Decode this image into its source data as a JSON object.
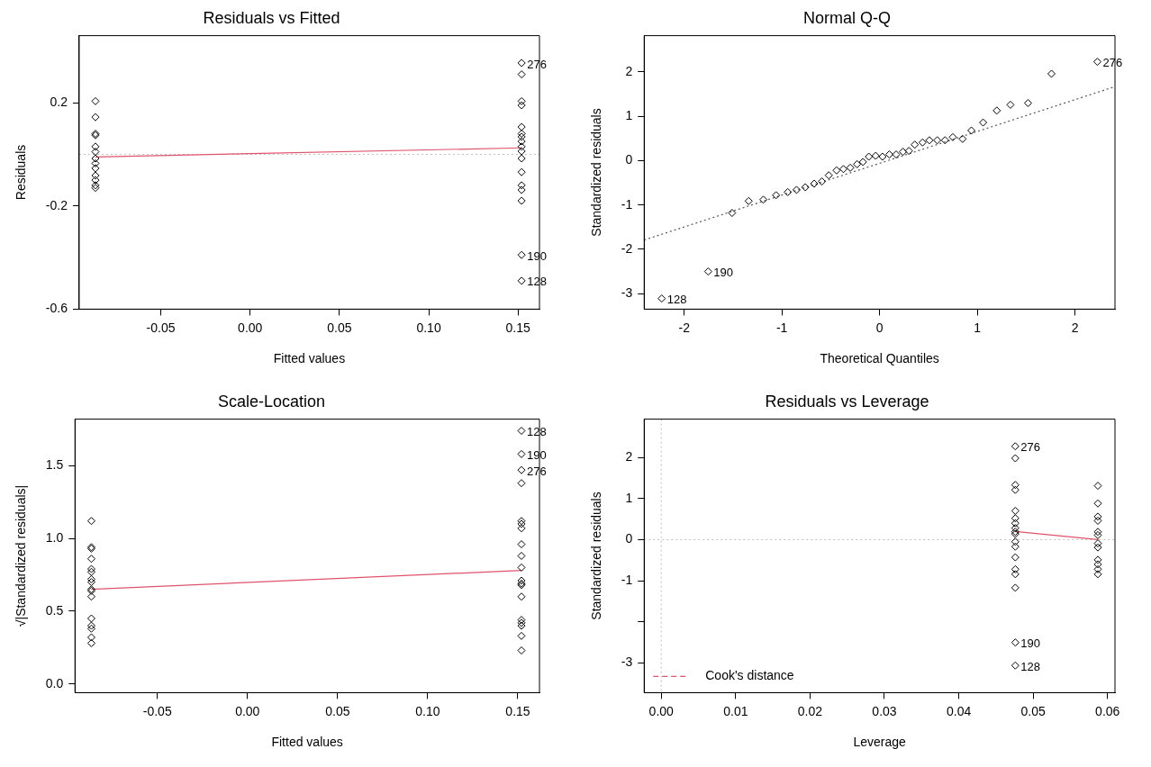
{
  "chart_data": [
    {
      "type": "scatter",
      "title": "Residuals vs Fitted",
      "xlabel": "Fitted values",
      "ylabel": "Residuals",
      "xlim": [
        -0.0957,
        0.162
      ],
      "xticks": [
        {
          "value": -0.05,
          "label": "-0.05"
        },
        {
          "value": 0,
          "label": "0.00"
        },
        {
          "value": 0.05,
          "label": "0.05"
        },
        {
          "value": 0.1,
          "label": "0.10"
        },
        {
          "value": 0.15,
          "label": "0.15"
        }
      ],
      "ylim": [
        -0.6,
        0.46
      ],
      "yticks": [
        {
          "value": -0.6,
          "label": "-0.6"
        },
        {
          "value": -0.2,
          "label": "-0.2"
        },
        {
          "value": 0.2,
          "label": "0.2"
        }
      ],
      "grid": false,
      "marker": "diamond",
      "series": [
        {
          "type": "scatter",
          "color": "#000000",
          "x": [
            -0.0866,
            -0.0866,
            -0.0866,
            -0.0866,
            -0.0866,
            -0.0866,
            -0.0866,
            -0.0866,
            -0.0866,
            -0.0866,
            -0.0866,
            -0.0866,
            -0.0866,
            0.152,
            0.152,
            0.152,
            0.152,
            0.152,
            0.152,
            0.152,
            0.152,
            0.152,
            0.152,
            0.152,
            0.152,
            0.152,
            0.152,
            0.152,
            0.152,
            0.152
          ],
          "values": [
            0.206,
            0.144,
            0.08,
            0.074,
            0.03,
            0.01,
            -0.016,
            -0.035,
            -0.054,
            -0.082,
            -0.1,
            -0.12,
            -0.13,
            0.354,
            0.31,
            0.206,
            0.19,
            0.106,
            0.08,
            0.068,
            0.05,
            0.03,
            0.012,
            -0.016,
            -0.069,
            -0.12,
            -0.138,
            -0.18,
            -0.39,
            -0.49
          ]
        },
        {
          "type": "line",
          "color": "#df536b",
          "marker": "none",
          "line_style": "solid",
          "x": [
            -0.0866,
            0.152
          ],
          "values": [
            -0.01,
            0.025
          ]
        }
      ],
      "ref_lines": [
        {
          "axis": "y",
          "value": 0,
          "color": "#bebebe",
          "line_style": "dotted"
        }
      ],
      "annotations": [
        {
          "text": "276",
          "x": 0.152,
          "y": 0.354
        },
        {
          "text": "190",
          "x": 0.152,
          "y": -0.39
        },
        {
          "text": "128",
          "x": 0.152,
          "y": -0.49
        }
      ]
    },
    {
      "type": "scatter",
      "title": "Normal Q-Q",
      "xlabel": "Theoretical Quantiles",
      "ylabel": "Standardized residuals",
      "xlim": [
        -2.41,
        2.41
      ],
      "xticks": [
        -2,
        -1,
        0,
        1,
        2
      ],
      "ylim": [
        -3.35,
        2.82
      ],
      "yticks": [
        -3,
        -2,
        -1,
        0,
        1,
        2
      ],
      "grid": false,
      "marker": "diamond",
      "series": [
        {
          "type": "scatter",
          "color": "#000000",
          "x": [
            -2.23,
            -1.755,
            -1.51,
            -1.34,
            -1.19,
            -1.06,
            -0.94,
            -0.85,
            -0.76,
            -0.67,
            -0.59,
            -0.52,
            -0.44,
            -0.37,
            -0.3,
            -0.23,
            -0.17,
            -0.11,
            -0.04,
            0.03,
            0.1,
            0.17,
            0.24,
            0.3,
            0.36,
            0.44,
            0.51,
            0.59,
            0.67,
            0.75,
            0.85,
            0.94,
            1.06,
            1.2,
            1.34,
            1.52,
            1.76,
            2.23
          ],
          "values": [
            -3.11,
            -2.5,
            -1.18,
            -0.91,
            -0.88,
            -0.78,
            -0.71,
            -0.66,
            -0.6,
            -0.52,
            -0.47,
            -0.33,
            -0.22,
            -0.19,
            -0.16,
            -0.08,
            -0.03,
            0.09,
            0.11,
            0.09,
            0.14,
            0.14,
            0.2,
            0.22,
            0.36,
            0.41,
            0.46,
            0.46,
            0.46,
            0.53,
            0.49,
            0.68,
            0.86,
            1.13,
            1.26,
            1.3,
            1.96,
            2.23
          ]
        },
        {
          "type": "line",
          "color": "#555555",
          "marker": "none",
          "line_style": "dotted",
          "x": [
            -2.41,
            2.41
          ],
          "values": [
            -1.79,
            1.67
          ]
        }
      ],
      "annotations": [
        {
          "text": "276",
          "x": 2.23,
          "y": 2.23
        },
        {
          "text": "190",
          "x": -1.755,
          "y": -2.5
        },
        {
          "text": "128",
          "x": -2.23,
          "y": -3.11
        }
      ]
    },
    {
      "type": "scatter",
      "title": "Scale-Location",
      "xlabel": "Fitted values",
      "ylabel": "√|Standardized residuals|",
      "xlim": [
        -0.0957,
        0.162
      ],
      "xticks": [
        {
          "value": -0.05,
          "label": "-0.05"
        },
        {
          "value": 0,
          "label": "0.00"
        },
        {
          "value": 0.05,
          "label": "0.05"
        },
        {
          "value": 0.1,
          "label": "0.10"
        },
        {
          "value": 0.15,
          "label": "0.15"
        }
      ],
      "ylim": [
        -0.06,
        1.82
      ],
      "yticks": [
        {
          "value": 0,
          "label": "0.0"
        },
        {
          "value": 0.5,
          "label": "0.5"
        },
        {
          "value": 1,
          "label": "1.0"
        },
        {
          "value": 1.5,
          "label": "1.5"
        }
      ],
      "grid": false,
      "marker": "diamond",
      "series": [
        {
          "type": "scatter",
          "color": "#000000",
          "x": [
            -0.0866,
            -0.0866,
            -0.0866,
            -0.0866,
            -0.0866,
            -0.0866,
            -0.0866,
            -0.0866,
            -0.0866,
            -0.0866,
            -0.0866,
            -0.0866,
            -0.0866,
            -0.0866,
            -0.0866,
            -0.0866,
            0.152,
            0.152,
            0.152,
            0.152,
            0.152,
            0.152,
            0.152,
            0.152,
            0.152,
            0.152,
            0.152,
            0.152,
            0.152,
            0.152,
            0.152,
            0.152,
            0.152,
            0.152,
            0.152
          ],
          "values": [
            1.12,
            0.94,
            0.93,
            0.86,
            0.79,
            0.77,
            0.72,
            0.7,
            0.65,
            0.64,
            0.6,
            0.45,
            0.4,
            0.38,
            0.32,
            0.28,
            1.74,
            1.58,
            1.47,
            1.38,
            1.12,
            1.1,
            1.07,
            0.96,
            0.88,
            0.8,
            0.71,
            0.69,
            0.68,
            0.6,
            0.44,
            0.42,
            0.4,
            0.33,
            0.23
          ]
        },
        {
          "type": "line",
          "color": "#df536b",
          "marker": "none",
          "line_style": "solid",
          "x": [
            -0.0866,
            0.152
          ],
          "values": [
            0.65,
            0.78
          ]
        }
      ],
      "annotations": [
        {
          "text": "128",
          "x": 0.152,
          "y": 1.74
        },
        {
          "text": "190",
          "x": 0.152,
          "y": 1.58
        },
        {
          "text": "276",
          "x": 0.152,
          "y": 1.47
        }
      ]
    },
    {
      "type": "scatter",
      "title": "Residuals vs Leverage",
      "xlabel": "Leverage",
      "ylabel": "Standardized residuals",
      "xlim": [
        -0.0023,
        0.061
      ],
      "xticks": [
        {
          "value": 0,
          "label": "0.00"
        },
        {
          "value": 0.01,
          "label": "0.01"
        },
        {
          "value": 0.02,
          "label": "0.02"
        },
        {
          "value": 0.03,
          "label": "0.03"
        },
        {
          "value": 0.04,
          "label": "0.04"
        },
        {
          "value": 0.05,
          "label": "0.05"
        },
        {
          "value": 0.06,
          "label": "0.06"
        }
      ],
      "ylim": [
        -3.72,
        2.93
      ],
      "yticks": [
        -3,
        {
          "value": -2,
          "label": null
        },
        -1,
        0,
        1,
        2
      ],
      "grid": false,
      "marker": "diamond",
      "legend": "bottom left",
      "series": [
        {
          "type": "scatter",
          "color": "#000000",
          "x": [
            0.0476,
            0.0476,
            0.0476,
            0.0476,
            0.0476,
            0.0476,
            0.0476,
            0.0476,
            0.0476,
            0.0476,
            0.0476,
            0.0476,
            0.0476,
            0.0476,
            0.0476,
            0.0476,
            0.0476,
            0.0476,
            0.0587,
            0.0587,
            0.0587,
            0.0587,
            0.0587,
            0.0587,
            0.0587,
            0.0587,
            0.0587,
            0.0587,
            0.0587,
            0.0587
          ],
          "values": [
            2.27,
            1.98,
            1.33,
            1.21,
            0.7,
            0.52,
            0.4,
            0.28,
            0.19,
            0.14,
            -0.05,
            -0.17,
            -0.43,
            -0.72,
            -0.84,
            -1.17,
            -2.5,
            -3.06,
            1.31,
            0.88,
            0.56,
            0.46,
            0.19,
            0.11,
            -0.09,
            -0.19,
            -0.49,
            -0.6,
            -0.72,
            -0.84
          ]
        },
        {
          "type": "line",
          "color": "#df536b",
          "marker": "none",
          "line_style": "solid",
          "x": [
            0.0476,
            0.0587
          ],
          "values": [
            0.2,
            0.0
          ]
        },
        {
          "type": "line",
          "name": "Cook's distance",
          "color": "#df536b",
          "marker": "none",
          "line_style": "dashed"
        }
      ],
      "ref_lines": [
        {
          "axis": "y",
          "value": 0,
          "color": "#bebebe",
          "line_style": "dotted"
        },
        {
          "axis": "x",
          "value": 0,
          "color": "#bebebe",
          "line_style": "dotted"
        }
      ],
      "annotations": [
        {
          "text": "276",
          "x": 0.0476,
          "y": 2.27
        },
        {
          "text": "190",
          "x": 0.0476,
          "y": -2.5
        },
        {
          "text": "128",
          "x": 0.0476,
          "y": -3.06
        }
      ]
    }
  ]
}
